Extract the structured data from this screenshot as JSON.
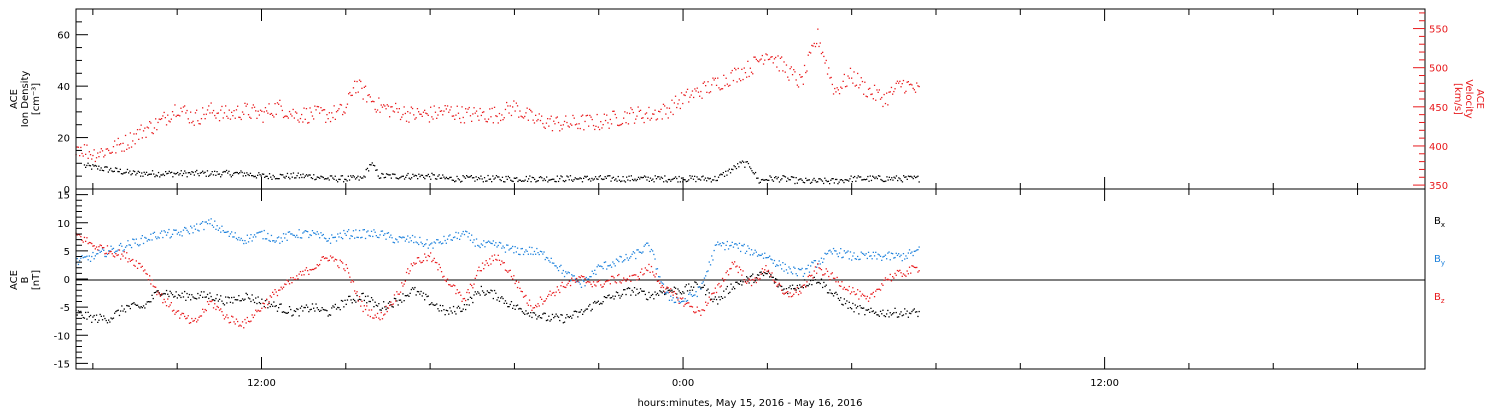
{
  "chart_data": [
    {
      "type": "scatter",
      "panel": "top",
      "y_left": {
        "label_lines": [
          "ACE",
          "Ion Density",
          "[cm⁻³]"
        ],
        "ylim": [
          0,
          70
        ],
        "ticks": [
          0,
          20,
          40,
          60
        ],
        "tick_labels": [
          "0",
          "20",
          "40",
          "60"
        ]
      },
      "y_right": {
        "label_lines": [
          "ACE",
          "Velocity",
          "[km/s]"
        ],
        "ylim": [
          345,
          575
        ],
        "ticks": [
          350,
          400,
          450,
          500,
          550
        ],
        "tick_labels": [
          "350",
          "400",
          "450",
          "500",
          "550"
        ],
        "color": "#e8191c"
      },
      "series": [
        {
          "axis": "left",
          "color": "#000000",
          "x": [
            1,
            3,
            5,
            7,
            9,
            10,
            12,
            14,
            16,
            18,
            20,
            22,
            24,
            26,
            28,
            30,
            32,
            34,
            35,
            36,
            38,
            40,
            42,
            44,
            46,
            48,
            50,
            52,
            54,
            56,
            58,
            60,
            62,
            64,
            66,
            68,
            70,
            72,
            74,
            76,
            78,
            79,
            80,
            81,
            82,
            84,
            86,
            88,
            90,
            92,
            94,
            96,
            98,
            100
          ],
          "y": [
            9,
            8,
            7,
            6,
            6,
            6,
            6,
            6,
            6,
            6,
            6,
            5,
            5,
            5,
            5,
            4,
            4,
            4,
            10,
            5,
            5,
            5,
            5,
            4,
            4,
            4,
            4,
            4,
            4,
            4,
            4,
            4,
            4,
            4,
            4,
            4,
            4,
            4,
            4,
            4,
            8,
            10,
            9,
            3,
            4,
            4,
            3,
            3,
            3,
            4,
            4,
            4,
            4,
            4
          ]
        },
        {
          "axis": "right",
          "color": "#e8191c",
          "x": [
            0,
            2,
            4,
            6,
            8,
            10,
            12,
            14,
            16,
            18,
            20,
            22,
            24,
            26,
            28,
            30,
            32,
            33,
            34,
            36,
            38,
            40,
            42,
            44,
            46,
            48,
            50,
            52,
            54,
            56,
            58,
            60,
            62,
            64,
            66,
            68,
            70,
            72,
            74,
            76,
            78,
            80,
            82,
            84,
            86,
            88,
            90,
            92,
            94,
            96,
            98,
            100
          ],
          "y": [
            400,
            390,
            395,
            405,
            420,
            430,
            450,
            435,
            445,
            440,
            445,
            440,
            450,
            440,
            440,
            440,
            445,
            480,
            470,
            450,
            445,
            440,
            440,
            445,
            440,
            440,
            440,
            450,
            435,
            430,
            428,
            430,
            430,
            435,
            440,
            440,
            445,
            460,
            470,
            480,
            490,
            500,
            520,
            500,
            480,
            540,
            470,
            490,
            470,
            460,
            480,
            470
          ]
        }
      ]
    },
    {
      "type": "scatter",
      "panel": "bottom",
      "y_left": {
        "label_lines": [
          "ACE",
          "B",
          "[nT]"
        ],
        "ylim": [
          -16,
          16
        ],
        "ticks": [
          -15,
          -10,
          -5,
          0,
          5,
          10,
          15
        ],
        "tick_labels": [
          "-15",
          "-10",
          "-5",
          "0",
          "5",
          "10",
          "15"
        ]
      },
      "legend_position": "right",
      "series": [
        {
          "name": "Bx",
          "color": "#000000",
          "x": [
            0,
            2,
            4,
            6,
            8,
            10,
            12,
            14,
            16,
            18,
            20,
            22,
            24,
            26,
            28,
            30,
            32,
            34,
            36,
            38,
            40,
            42,
            44,
            46,
            48,
            50,
            52,
            54,
            56,
            58,
            60,
            62,
            64,
            66,
            68,
            70,
            72,
            74,
            76,
            78,
            80,
            82,
            84,
            86,
            88,
            90,
            92,
            94,
            96,
            98,
            100
          ],
          "y": [
            -6,
            -7,
            -7,
            -5,
            -5,
            -2,
            -3,
            -3,
            -3,
            -4,
            -3,
            -4,
            -5,
            -6,
            -5,
            -6,
            -4,
            -3,
            -5,
            -4,
            -2,
            -4,
            -6,
            -5,
            -2,
            -3,
            -5,
            -6,
            -7,
            -7,
            -6,
            -4,
            -3,
            -2,
            -3,
            -2,
            -2,
            -1,
            -4,
            -1,
            0,
            1,
            -2,
            -1,
            0,
            -3,
            -5,
            -6,
            -6,
            -6,
            -6
          ]
        },
        {
          "name": "By",
          "color": "#1e82dc",
          "x": [
            0,
            2,
            4,
            6,
            8,
            10,
            12,
            14,
            16,
            18,
            20,
            22,
            24,
            26,
            28,
            30,
            32,
            34,
            36,
            38,
            40,
            42,
            44,
            46,
            48,
            50,
            52,
            54,
            56,
            58,
            60,
            62,
            64,
            66,
            68,
            70,
            72,
            74,
            76,
            78,
            80,
            82,
            84,
            86,
            88,
            90,
            92,
            94,
            96,
            98,
            100
          ],
          "y": [
            3,
            4,
            5,
            6,
            7,
            8,
            8,
            9,
            10,
            8,
            7,
            8,
            7,
            8,
            8,
            7,
            8,
            8,
            8,
            7,
            7,
            6,
            7,
            8,
            6,
            6,
            5,
            5,
            4,
            1,
            -1,
            2,
            3,
            4,
            6,
            -3,
            -4,
            -2,
            6,
            6,
            5,
            4,
            2,
            1,
            3,
            5,
            4,
            4,
            4,
            4,
            5
          ]
        },
        {
          "name": "Bz",
          "color": "#e8191c",
          "x": [
            0,
            2,
            4,
            6,
            8,
            10,
            12,
            14,
            16,
            18,
            20,
            22,
            24,
            26,
            28,
            30,
            32,
            34,
            36,
            38,
            40,
            42,
            44,
            46,
            48,
            50,
            52,
            54,
            56,
            58,
            60,
            62,
            64,
            66,
            68,
            70,
            72,
            74,
            76,
            78,
            80,
            82,
            84,
            86,
            88,
            90,
            92,
            94,
            96,
            98,
            100
          ],
          "y": [
            8,
            6,
            5,
            4,
            2,
            -3,
            -6,
            -8,
            -4,
            -7,
            -8,
            -5,
            -2,
            0,
            2,
            4,
            2,
            -5,
            -7,
            -3,
            3,
            4,
            0,
            -4,
            2,
            4,
            0,
            -5,
            -3,
            -1,
            0,
            -1,
            0,
            0,
            2,
            -2,
            -4,
            -6,
            -2,
            3,
            -1,
            2,
            -3,
            -2,
            2,
            0,
            -2,
            -4,
            0,
            1,
            2
          ]
        }
      ],
      "legend": [
        {
          "main": "B",
          "sub": "x",
          "color": "#000000"
        },
        {
          "main": "B",
          "sub": "y",
          "color": "#1e82dc"
        },
        {
          "main": "B",
          "sub": "z",
          "color": "#e8191c"
        }
      ]
    }
  ],
  "x_axis": {
    "xlim": [
      0,
      160
    ],
    "ticks": [
      22,
      72,
      122
    ],
    "tick_labels": [
      "12:00",
      "0:00",
      "12:00"
    ],
    "label": "hours:minutes, May 15, 2016 - May 16, 2016",
    "data_end": 100
  }
}
